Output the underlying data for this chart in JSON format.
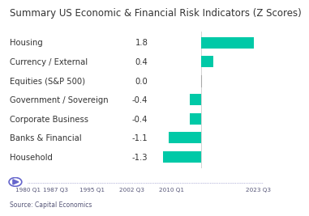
{
  "title": "Summary US Economic & Financial Risk Indicators (Z Scores)",
  "categories": [
    "Housing",
    "Currency / External",
    "Equities (S&P 500)",
    "Government / Sovereign",
    "Corporate Business",
    "Banks & Financial",
    "Household"
  ],
  "values": [
    1.8,
    0.4,
    0.0,
    -0.4,
    -0.4,
    -1.1,
    -1.3
  ],
  "bar_color": "#00c9a7",
  "background_color": "#ffffff",
  "title_fontsize": 8.5,
  "label_fontsize": 7.2,
  "value_fontsize": 7.2,
  "timeline_ticks": [
    "1980 Q1",
    "1987 Q3",
    "1995 Q1",
    "2002 Q3",
    "2010 Q1",
    "2023 Q3"
  ],
  "source_text": "Source: Capital Economics"
}
